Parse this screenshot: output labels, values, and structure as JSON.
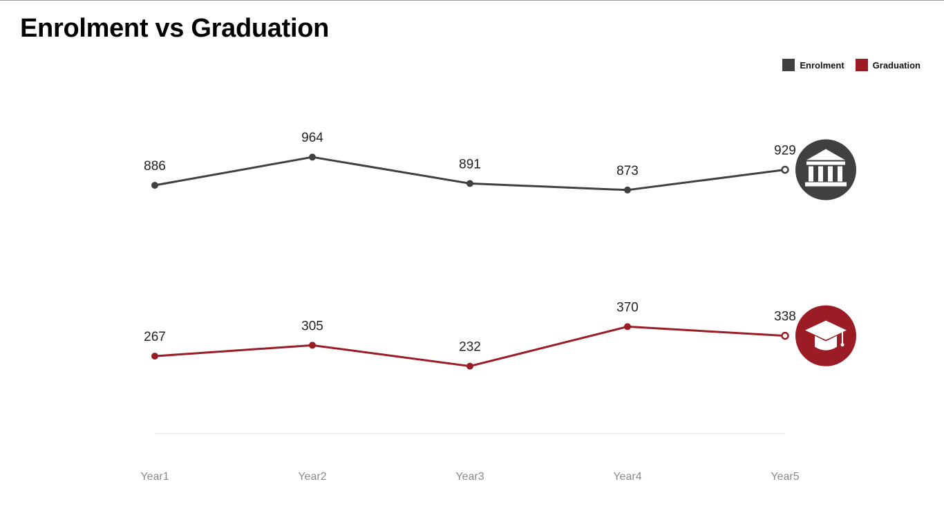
{
  "chart_data": {
    "type": "line",
    "title": "Enrolment vs Graduation",
    "categories": [
      "Year1",
      "Year2",
      "Year3",
      "Year4",
      "Year5"
    ],
    "series": [
      {
        "name": "Enrolment",
        "values": [
          886,
          964,
          891,
          873,
          929
        ],
        "color": "#404040",
        "icon": "building-icon"
      },
      {
        "name": "Graduation",
        "values": [
          267,
          305,
          232,
          370,
          338
        ],
        "color": "#9b1c24",
        "icon": "graduation-cap-icon"
      }
    ],
    "ylim": [
      0,
      1000
    ],
    "grid": false,
    "legend_position": "top-right"
  }
}
